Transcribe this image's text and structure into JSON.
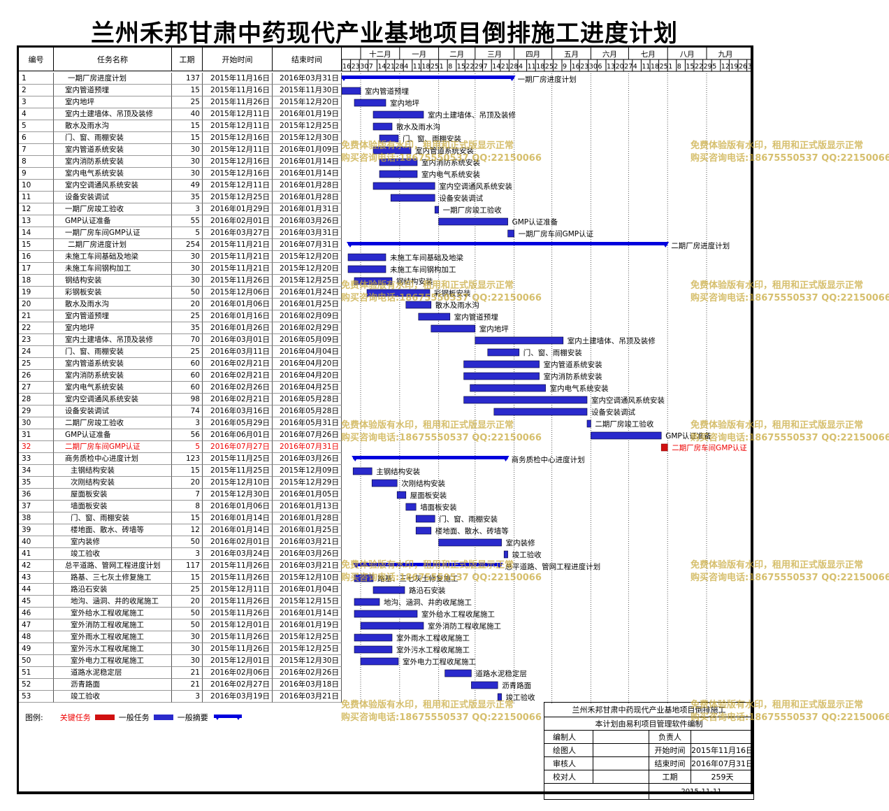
{
  "title": "兰州禾邦甘肃中药现代产业基地项目倒排施工进度计划",
  "headers": {
    "id": "编号",
    "name": "任务名称",
    "duration": "工期",
    "start": "开始时间",
    "end": "结束时间"
  },
  "timeline": {
    "months": [
      "十二月",
      "一月",
      "二月",
      "三月",
      "四月",
      "五月",
      "六月",
      "七月",
      "八月",
      "九月"
    ],
    "days": [
      "16",
      "23",
      "30",
      "7",
      "14",
      "21",
      "28",
      "4",
      "11",
      "18",
      "25",
      "1",
      "8",
      "15",
      "22",
      "29",
      "7",
      "14",
      "21",
      "28",
      "4",
      "11",
      "18",
      "25",
      "2",
      "9",
      "16",
      "23",
      "30",
      "6",
      "13",
      "20",
      "27",
      "4",
      "11",
      "18",
      "25",
      "1",
      "8",
      "15",
      "22",
      "29",
      "5",
      "12",
      "19",
      "26",
      "3"
    ],
    "day0": "2015-11-16"
  },
  "tasks": [
    {
      "id": "1",
      "name": "一期厂房进度计划",
      "dur": "137",
      "start": "2015年11月16日",
      "end": "2016年03月31日",
      "type": "summary",
      "indent": 0,
      "s": 0,
      "e": 137
    },
    {
      "id": "2",
      "name": "室内管道预埋",
      "dur": "15",
      "start": "2015年11月16日",
      "end": "2015年11月30日",
      "type": "task",
      "indent": 1,
      "s": 0,
      "e": 15
    },
    {
      "id": "3",
      "name": "室内地坪",
      "dur": "25",
      "start": "2015年11月26日",
      "end": "2015年12月20日",
      "type": "task",
      "indent": 1,
      "s": 10,
      "e": 35
    },
    {
      "id": "4",
      "name": "室内土建墙体、吊顶及装修",
      "dur": "40",
      "start": "2015年12月11日",
      "end": "2016年01月19日",
      "type": "task",
      "indent": 1,
      "s": 25,
      "e": 65
    },
    {
      "id": "5",
      "name": "散水及雨水沟",
      "dur": "15",
      "start": "2015年12月11日",
      "end": "2015年12月25日",
      "type": "task",
      "indent": 1,
      "s": 25,
      "e": 40
    },
    {
      "id": "6",
      "name": "门、窗、雨棚安装",
      "dur": "15",
      "start": "2015年12月16日",
      "end": "2015年12月30日",
      "type": "task",
      "indent": 1,
      "s": 30,
      "e": 45
    },
    {
      "id": "7",
      "name": "室内管道系统安装",
      "dur": "30",
      "start": "2015年12月11日",
      "end": "2016年01月09日",
      "type": "task",
      "indent": 1,
      "s": 25,
      "e": 55
    },
    {
      "id": "8",
      "name": "室内消防系统安装",
      "dur": "30",
      "start": "2015年12月16日",
      "end": "2016年01月14日",
      "type": "task",
      "indent": 1,
      "s": 30,
      "e": 60
    },
    {
      "id": "9",
      "name": "室内电气系统安装",
      "dur": "30",
      "start": "2015年12月16日",
      "end": "2016年01月14日",
      "type": "task",
      "indent": 1,
      "s": 30,
      "e": 60
    },
    {
      "id": "10",
      "name": "室内空调通风系统安装",
      "dur": "49",
      "start": "2015年12月11日",
      "end": "2016年01月28日",
      "type": "task",
      "indent": 1,
      "s": 25,
      "e": 74
    },
    {
      "id": "11",
      "name": "设备安装调试",
      "dur": "35",
      "start": "2015年12月25日",
      "end": "2016年01月28日",
      "type": "task",
      "indent": 1,
      "s": 39,
      "e": 74
    },
    {
      "id": "12",
      "name": "一期厂房竣工验收",
      "dur": "3",
      "start": "2016年01月29日",
      "end": "2016年01月31日",
      "type": "task",
      "indent": 1,
      "s": 74,
      "e": 77
    },
    {
      "id": "13",
      "name": "GMP认证准备",
      "dur": "55",
      "start": "2016年02月01日",
      "end": "2016年03月26日",
      "type": "task",
      "indent": 1,
      "s": 77,
      "e": 132
    },
    {
      "id": "14",
      "name": "一期厂房车间GMP认证",
      "dur": "5",
      "start": "2016年03月27日",
      "end": "2016年03月31日",
      "type": "task",
      "indent": 1,
      "s": 132,
      "e": 137
    },
    {
      "id": "15",
      "name": "二期厂房进度计划",
      "dur": "254",
      "start": "2015年11月21日",
      "end": "2016年07月31日",
      "type": "summary",
      "indent": 0,
      "s": 5,
      "e": 259
    },
    {
      "id": "16",
      "name": "未施工车间基础及地梁",
      "dur": "30",
      "start": "2015年11月21日",
      "end": "2015年12月20日",
      "type": "task",
      "indent": 1,
      "s": 5,
      "e": 35
    },
    {
      "id": "17",
      "name": "未施工车间钢构加工",
      "dur": "30",
      "start": "2015年11月21日",
      "end": "2015年12月20日",
      "type": "task",
      "indent": 1,
      "s": 5,
      "e": 35
    },
    {
      "id": "18",
      "name": "钢结构安装",
      "dur": "30",
      "start": "2015年11月26日",
      "end": "2015年12月25日",
      "type": "task",
      "indent": 1,
      "s": 10,
      "e": 40
    },
    {
      "id": "19",
      "name": "彩钢板安装",
      "dur": "50",
      "start": "2015年12月06日",
      "end": "2016年01月24日",
      "type": "task",
      "indent": 1,
      "s": 20,
      "e": 70
    },
    {
      "id": "20",
      "name": "散水及雨水沟",
      "dur": "20",
      "start": "2016年01月06日",
      "end": "2016年01月25日",
      "type": "task",
      "indent": 1,
      "s": 51,
      "e": 71
    },
    {
      "id": "21",
      "name": "室内管道预埋",
      "dur": "25",
      "start": "2016年01月16日",
      "end": "2016年02月09日",
      "type": "task",
      "indent": 1,
      "s": 61,
      "e": 86
    },
    {
      "id": "22",
      "name": "室内地坪",
      "dur": "35",
      "start": "2016年01月26日",
      "end": "2016年02月29日",
      "type": "task",
      "indent": 1,
      "s": 71,
      "e": 106
    },
    {
      "id": "23",
      "name": "室内土建墙体、吊顶及装修",
      "dur": "70",
      "start": "2016年03月01日",
      "end": "2016年05月09日",
      "type": "task",
      "indent": 1,
      "s": 106,
      "e": 176
    },
    {
      "id": "24",
      "name": "门、窗、雨棚安装",
      "dur": "25",
      "start": "2016年03月11日",
      "end": "2016年04月04日",
      "type": "task",
      "indent": 1,
      "s": 116,
      "e": 141
    },
    {
      "id": "25",
      "name": "室内管道系统安装",
      "dur": "60",
      "start": "2016年02月21日",
      "end": "2016年04月20日",
      "type": "task",
      "indent": 1,
      "s": 97,
      "e": 157
    },
    {
      "id": "26",
      "name": "室内消防系统安装",
      "dur": "60",
      "start": "2016年02月21日",
      "end": "2016年04月20日",
      "type": "task",
      "indent": 1,
      "s": 97,
      "e": 157
    },
    {
      "id": "27",
      "name": "室内电气系统安装",
      "dur": "60",
      "start": "2016年02月26日",
      "end": "2016年04月25日",
      "type": "task",
      "indent": 1,
      "s": 102,
      "e": 162
    },
    {
      "id": "28",
      "name": "室内空调通风系统安装",
      "dur": "98",
      "start": "2016年02月21日",
      "end": "2016年05月28日",
      "type": "task",
      "indent": 1,
      "s": 97,
      "e": 195
    },
    {
      "id": "29",
      "name": "设备安装调试",
      "dur": "74",
      "start": "2016年03月16日",
      "end": "2016年05月28日",
      "type": "task",
      "indent": 1,
      "s": 121,
      "e": 195
    },
    {
      "id": "30",
      "name": "二期厂房竣工验收",
      "dur": "3",
      "start": "2016年05月29日",
      "end": "2016年05月31日",
      "type": "task",
      "indent": 1,
      "s": 195,
      "e": 198
    },
    {
      "id": "31",
      "name": "GMP认证准备",
      "dur": "56",
      "start": "2016年06月01日",
      "end": "2016年07月26日",
      "type": "task",
      "indent": 1,
      "s": 198,
      "e": 254
    },
    {
      "id": "32",
      "name": "二期厂房车间GMP认证",
      "dur": "5",
      "start": "2016年07月27日",
      "end": "2016年07月31日",
      "type": "crit",
      "indent": 1,
      "s": 254,
      "e": 259
    },
    {
      "id": "33",
      "name": "商务质检中心进度计划",
      "dur": "123",
      "start": "2015年11月25日",
      "end": "2016年03月26日",
      "type": "summary",
      "indent": 1,
      "s": 9,
      "e": 132
    },
    {
      "id": "34",
      "name": "主钢结构安装",
      "dur": "15",
      "start": "2015年11月25日",
      "end": "2015年12月09日",
      "type": "task",
      "indent": 2,
      "s": 9,
      "e": 24
    },
    {
      "id": "35",
      "name": "次刚结构安装",
      "dur": "20",
      "start": "2015年12月10日",
      "end": "2015年12月29日",
      "type": "task",
      "indent": 2,
      "s": 24,
      "e": 44
    },
    {
      "id": "36",
      "name": "屋面板安装",
      "dur": "7",
      "start": "2015年12月30日",
      "end": "2016年01月05日",
      "type": "task",
      "indent": 2,
      "s": 44,
      "e": 51
    },
    {
      "id": "37",
      "name": "墙面板安装",
      "dur": "8",
      "start": "2016年01月06日",
      "end": "2016年01月13日",
      "type": "task",
      "indent": 2,
      "s": 51,
      "e": 59
    },
    {
      "id": "38",
      "name": "门、窗、雨棚安装",
      "dur": "15",
      "start": "2016年01月14日",
      "end": "2016年01月28日",
      "type": "task",
      "indent": 2,
      "s": 59,
      "e": 74
    },
    {
      "id": "39",
      "name": "楼地面、散水、砖墙等",
      "dur": "12",
      "start": "2016年01月14日",
      "end": "2016年01月25日",
      "type": "task",
      "indent": 2,
      "s": 59,
      "e": 71
    },
    {
      "id": "40",
      "name": "室内装修",
      "dur": "50",
      "start": "2016年02月01日",
      "end": "2016年03月21日",
      "type": "task",
      "indent": 2,
      "s": 77,
      "e": 127
    },
    {
      "id": "41",
      "name": "竣工验收",
      "dur": "3",
      "start": "2016年03月24日",
      "end": "2016年03月26日",
      "type": "task",
      "indent": 2,
      "s": 129,
      "e": 132
    },
    {
      "id": "42",
      "name": "总平道路、管网工程进度计划",
      "dur": "117",
      "start": "2015年11月26日",
      "end": "2016年03月21日",
      "type": "summary",
      "indent": 1,
      "s": 10,
      "e": 127
    },
    {
      "id": "43",
      "name": "路基、三七灰土修复施工",
      "dur": "15",
      "start": "2015年11月26日",
      "end": "2015年12月10日",
      "type": "task",
      "indent": 2,
      "s": 10,
      "e": 25
    },
    {
      "id": "44",
      "name": "路沿石安装",
      "dur": "25",
      "start": "2015年12月11日",
      "end": "2016年01月04日",
      "type": "task",
      "indent": 2,
      "s": 25,
      "e": 50
    },
    {
      "id": "45",
      "name": "地沟、涵洞、井的收尾施工",
      "dur": "20",
      "start": "2015年11月26日",
      "end": "2015年12月15日",
      "type": "task",
      "indent": 2,
      "s": 10,
      "e": 30
    },
    {
      "id": "46",
      "name": "室外给水工程收尾施工",
      "dur": "50",
      "start": "2015年11月26日",
      "end": "2016年01月14日",
      "type": "task",
      "indent": 2,
      "s": 10,
      "e": 60
    },
    {
      "id": "47",
      "name": "室外消防工程收尾施工",
      "dur": "50",
      "start": "2015年12月01日",
      "end": "2016年01月19日",
      "type": "task",
      "indent": 2,
      "s": 15,
      "e": 65
    },
    {
      "id": "48",
      "name": "室外雨水工程收尾施工",
      "dur": "30",
      "start": "2015年11月26日",
      "end": "2015年12月25日",
      "type": "task",
      "indent": 2,
      "s": 10,
      "e": 40
    },
    {
      "id": "49",
      "name": "室外污水工程收尾施工",
      "dur": "30",
      "start": "2015年11月26日",
      "end": "2015年12月25日",
      "type": "task",
      "indent": 2,
      "s": 10,
      "e": 40
    },
    {
      "id": "50",
      "name": "室外电力工程收尾施工",
      "dur": "30",
      "start": "2015年12月01日",
      "end": "2015年12月30日",
      "type": "task",
      "indent": 2,
      "s": 15,
      "e": 45
    },
    {
      "id": "51",
      "name": "道路水泥稳定层",
      "dur": "21",
      "start": "2016年02月06日",
      "end": "2016年02月26日",
      "type": "task",
      "indent": 2,
      "s": 82,
      "e": 103
    },
    {
      "id": "52",
      "name": "沥青路面",
      "dur": "21",
      "start": "2016年02月27日",
      "end": "2016年03月18日",
      "type": "task",
      "indent": 2,
      "s": 103,
      "e": 124
    },
    {
      "id": "53",
      "name": "竣工验收",
      "dur": "3",
      "start": "2016年03月19日",
      "end": "2016年03月21日",
      "type": "task",
      "indent": 2,
      "s": 124,
      "e": 127
    }
  ],
  "legend": {
    "label": "图例:",
    "critical": "关键任务",
    "general": "一般任务",
    "summary": "一般摘要"
  },
  "info": {
    "project": "兰州禾邦甘肃中药现代产业基地项目倒排施工",
    "software": "本计划由易利项目管理软件编制",
    "editor": "编制人",
    "owner": "负责人",
    "drawer": "绘图人",
    "start_label": "开始时间",
    "start": "2015年11月16日",
    "reviewer": "审核人",
    "end_label": "结束时间",
    "end": "2016年07月31日",
    "checker": "校对人",
    "dur_label": "工期",
    "dur": "259天",
    "date": "2015-11-11"
  },
  "watermark": {
    "line1": "免费体验版有水印，租用和正式版显示正常",
    "line2": "购买咨询电话:18675550537 QQ:22150066"
  },
  "colors": {
    "task": "#2a2acc",
    "critical": "#d01010",
    "summary": "#0000dd"
  }
}
